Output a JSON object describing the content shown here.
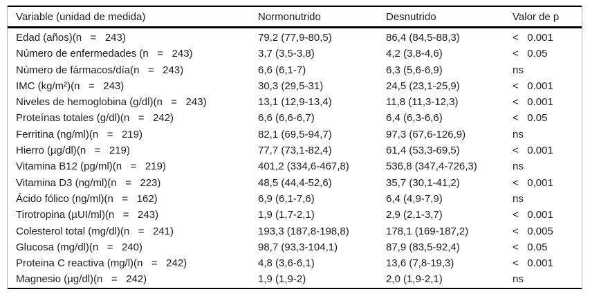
{
  "table": {
    "headers": {
      "variable": "Variable (unidad de medida)",
      "normonutrido": "Normonutrido",
      "desnutrido": "Desnutrido",
      "p": "Valor de p"
    },
    "rows": [
      {
        "variable": "Edad (años)(n   =   243)",
        "normonutrido": "79,2 (77,9-80,5)",
        "desnutrido": "86,4 (84,5-88,3)",
        "p": "<   0.001"
      },
      {
        "variable": "Número de enfermedades (n   =   243)",
        "normonutrido": "3,7 (3,5-3,8)",
        "desnutrido": "4,2 (3,8-4,6)",
        "p": "<   0.05"
      },
      {
        "variable": "Número de fármacos/día(n   =   243)",
        "normonutrido": "6,6 (6,1-7)",
        "desnutrido": "6,3 (5,6-6,9)",
        "p": "ns"
      },
      {
        "variable": "IMC (kg/m²)(n   =   243)",
        "normonutrido": "30,3 (29,5-31)",
        "desnutrido": "24,5 (23,1-25,9)",
        "p": "<   0.001"
      },
      {
        "variable": "Niveles de hemoglobina (g/dl)(n   =   243)",
        "normonutrido": "13,1 (12,9-13,4)",
        "desnutrido": "11,8 (11,3-12,3)",
        "p": "<   0.001"
      },
      {
        "variable": "Proteínas totales (g/dl)(n   =   242)",
        "normonutrido": "6,6 (6,6-6,7)",
        "desnutrido": "6,4 (6,3-6,6)",
        "p": "<   0.05"
      },
      {
        "variable": "Ferritina (ng/ml)(n   =   219)",
        "normonutrido": "82,1 (69,5-94,7)",
        "desnutrido": "97,3 (67,6-126,9)",
        "p": "ns"
      },
      {
        "variable": "Hierro (µg/dl)(n   =   219)",
        "normonutrido": "77,7 (73,1-82,4)",
        "desnutrido": "61,4 (53,3-69,5)",
        "p": "<   0.001"
      },
      {
        "variable": "Vitamina B12 (pg/ml)(n   =   219)",
        "normonutrido": "401,2 (334,6-467,8)",
        "desnutrido": "536,8 (347,4-726,3)",
        "p": "ns"
      },
      {
        "variable": "Vitamina D3 (ng/ml)(n   =   223)",
        "normonutrido": "48,5 (44,4-52,6)",
        "desnutrido": "35,7 (30,1-41,2)",
        "p": "<   0,001"
      },
      {
        "variable": "Ácido fólico (ng/ml)(n   =   162)",
        "normonutrido": "6,9 (6,1-7,6)",
        "desnutrido": "6,4 (4,9-7,9)",
        "p": "ns"
      },
      {
        "variable": "Tirotropina (µUI/ml)(n   =   243)",
        "normonutrido": "1,9 (1,7-2,1)",
        "desnutrido": "2,9 (2,1-3,7)",
        "p": "<   0.001"
      },
      {
        "variable": "Colesterol total (mg/dl)(n   =   241)",
        "normonutrido": "193,3 (187,8-198,8)",
        "desnutrido": "178,1 (169-187,2)",
        "p": "<   0.005"
      },
      {
        "variable": "Glucosa (mg/dl)(n   =   240)",
        "normonutrido": "98,7 (93,3-104,1)",
        "desnutrido": "87,9 (83,5-92,4)",
        "p": "<   0.05"
      },
      {
        "variable": "Proteina C reactiva (mg/l)(n   =   242)",
        "normonutrido": "4,8 (3,6-6,1)",
        "desnutrido": "13,6 (7,8-19,3)",
        "p": "<   0.001"
      },
      {
        "variable": "Magnesio (µg/dl)(n   =   242)",
        "normonutrido": "1,9 (1,9-2)",
        "desnutrido": "2,0 (1,9-2,1)",
        "p": "ns"
      }
    ]
  }
}
